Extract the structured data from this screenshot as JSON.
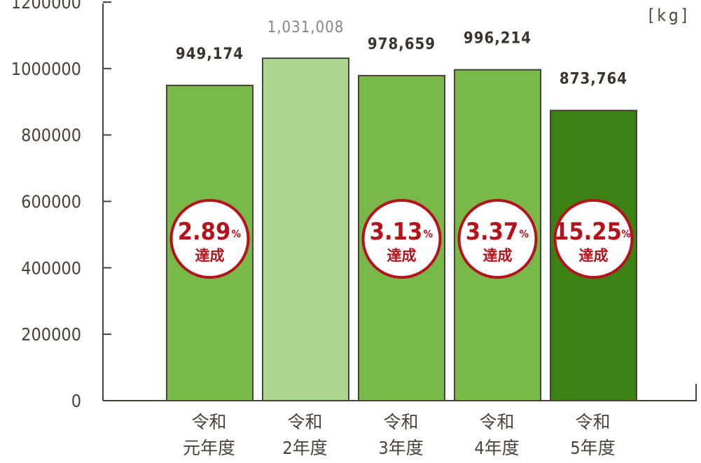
{
  "chart_data": {
    "type": "bar",
    "unit": "[kg]",
    "categories": [
      {
        "line1": "令和",
        "line2": "元年度"
      },
      {
        "line1": "令和",
        "line2": "2年度"
      },
      {
        "line1": "令和",
        "line2": "3年度"
      },
      {
        "line1": "令和",
        "line2": "4年度"
      },
      {
        "line1": "令和",
        "line2": "5年度"
      }
    ],
    "values": [
      949174,
      1031008,
      978659,
      996214,
      873764
    ],
    "value_labels": [
      "949,174",
      "1,031,008",
      "978,659",
      "996,214",
      "873,764"
    ],
    "bar_colors": [
      "#79b94a",
      "#acd68f",
      "#79b94a",
      "#79b94a",
      "#3c8114"
    ],
    "badges": [
      {
        "value": "2.89",
        "unit": "%",
        "text": "達成"
      },
      null,
      {
        "value": "3.13",
        "unit": "%",
        "text": "達成"
      },
      {
        "value": "3.37",
        "unit": "%",
        "text": "達成"
      },
      {
        "value": "15.25",
        "unit": "%",
        "text": "達成"
      }
    ],
    "ylim": [
      0,
      1200000
    ],
    "yticks": [
      "0",
      "200000",
      "400000",
      "600000",
      "800000",
      "1000000",
      "1200000"
    ],
    "ytick_values": [
      0,
      200000,
      400000,
      600000,
      800000,
      1000000,
      1200000
    ],
    "grid": false,
    "colors": {
      "axis": "#4a4238",
      "badge_text": "#b5121b",
      "badge_border": "#b5121b",
      "bar_border": "#4a4238"
    }
  }
}
